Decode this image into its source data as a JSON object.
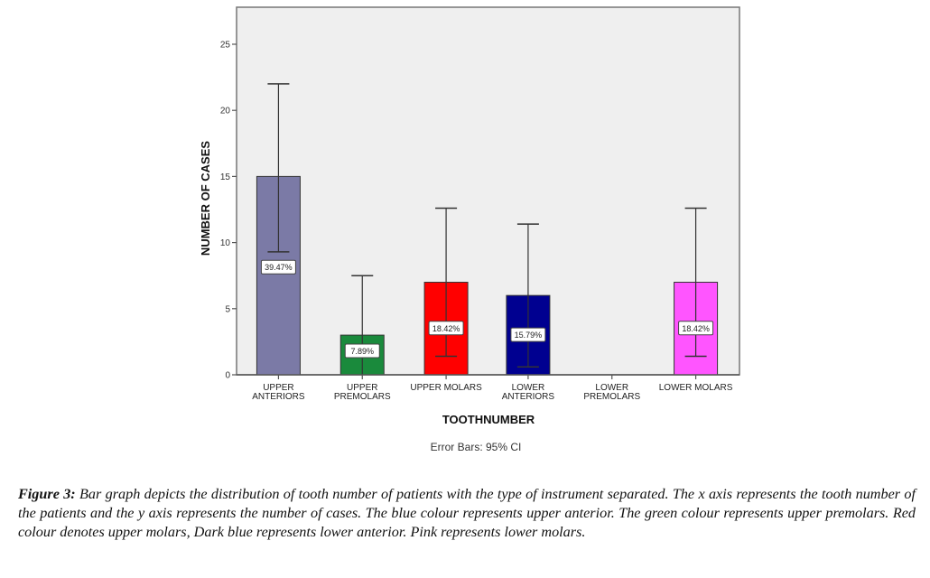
{
  "chart_data": {
    "type": "bar",
    "title": "",
    "xlabel": "TOOTHNUMBER",
    "ylabel": "NUMBER OF CASES",
    "ylim": [
      0,
      27.8
    ],
    "yticks": [
      0,
      5,
      10,
      15,
      20,
      25
    ],
    "grid": false,
    "legend": "none",
    "categories": [
      [
        "UPPER",
        "ANTERIORS"
      ],
      [
        "UPPER",
        "PREMOLARS"
      ],
      [
        "UPPER MOLARS"
      ],
      [
        "LOWER",
        "ANTERIORS"
      ],
      [
        "LOWER",
        "PREMOLARS"
      ],
      [
        "LOWER MOLARS"
      ]
    ],
    "values": [
      15,
      3,
      7,
      6,
      0,
      7
    ],
    "data_labels": [
      "39.47%",
      "7.89%",
      "18.42%",
      "15.79%",
      "",
      "18.42%"
    ],
    "error_bars": [
      {
        "low": 9.3,
        "high": 22.0
      },
      {
        "low": -1.5,
        "high": 7.5
      },
      {
        "low": 1.4,
        "high": 12.6
      },
      {
        "low": 0.6,
        "high": 11.4
      },
      null,
      {
        "low": 1.4,
        "high": 12.6
      }
    ],
    "colors": [
      "#7b7aa6",
      "#1a8a3c",
      "#ff0000",
      "#000090",
      "#ffffff",
      "#ff55ff"
    ],
    "plot_background": "#efefef",
    "annotation": "Error Bars: 95% CI"
  },
  "caption": {
    "label": "Figure 3:",
    "text": " Bar graph depicts the distribution of tooth number of patients with the type of instrument separated. The x axis represents the tooth number of the patients and the y axis represents the number of cases. The blue colour represents upper anterior. The green colour represents upper premolars. Red colour denotes upper molars, Dark blue represents lower anterior. Pink represents lower molars."
  }
}
